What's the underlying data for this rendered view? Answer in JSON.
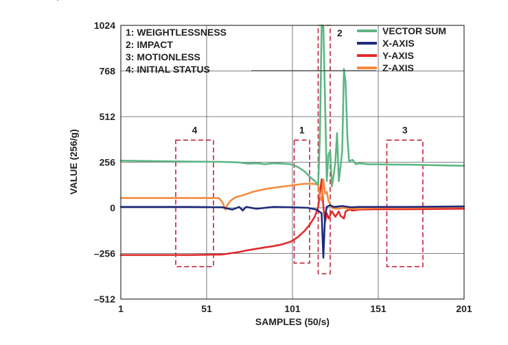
{
  "chart_data": {
    "type": "line",
    "xlabel": "SAMPLES (50/s)",
    "ylabel": "VALUE (256/g)",
    "xlim": [
      1,
      201
    ],
    "ylim": [
      -512,
      1024
    ],
    "xticks": [
      "1",
      "51",
      "101",
      "151",
      "201"
    ],
    "yticks": [
      "1024",
      "768",
      "512",
      "256",
      "0",
      "–256",
      "–512"
    ],
    "grid": true,
    "legend_position": "top-right",
    "annotations": [
      "1: WEIGHTLESSNESS",
      "2: IMPACT",
      "3: MOTIONLESS",
      "4: INITIAL STATUS"
    ],
    "region_labels": [
      {
        "label": "4",
        "x0": 33,
        "x1": 55,
        "y0": -330,
        "y1": 380
      },
      {
        "label": "1",
        "x0": 102,
        "x1": 111,
        "y0": -310,
        "y1": 380
      },
      {
        "label": "2",
        "x0": 116,
        "x1": 123,
        "y0": -370,
        "y1": 1024
      },
      {
        "label": "3",
        "x0": 156,
        "x1": 177,
        "y0": -330,
        "y1": 380
      }
    ],
    "series": [
      {
        "name": "VECTOR SUM",
        "color": "#5cb683",
        "points": [
          [
            1,
            265
          ],
          [
            20,
            262
          ],
          [
            40,
            260
          ],
          [
            60,
            258
          ],
          [
            70,
            255
          ],
          [
            75,
            248
          ],
          [
            80,
            250
          ],
          [
            85,
            245
          ],
          [
            90,
            250
          ],
          [
            95,
            248
          ],
          [
            100,
            245
          ],
          [
            104,
            230
          ],
          [
            108,
            205
          ],
          [
            111,
            175
          ],
          [
            114,
            150
          ],
          [
            116,
            130
          ],
          [
            117,
            400
          ],
          [
            118,
            1024
          ],
          [
            119,
            1024
          ],
          [
            120,
            600
          ],
          [
            121,
            150
          ],
          [
            122,
            300
          ],
          [
            123,
            320
          ],
          [
            124,
            120
          ],
          [
            125,
            180
          ],
          [
            126,
            260
          ],
          [
            127,
            420
          ],
          [
            128,
            150
          ],
          [
            129,
            230
          ],
          [
            130,
            320
          ],
          [
            131,
            780
          ],
          [
            132,
            700
          ],
          [
            133,
            400
          ],
          [
            134,
            260
          ],
          [
            136,
            270
          ],
          [
            138,
            245
          ],
          [
            140,
            250
          ],
          [
            145,
            245
          ],
          [
            150,
            244
          ],
          [
            160,
            243
          ],
          [
            170,
            242
          ],
          [
            180,
            240
          ],
          [
            190,
            238
          ],
          [
            201,
            236
          ]
        ]
      },
      {
        "name": "X-AXIS",
        "color": "#1e2a78",
        "points": [
          [
            1,
            5
          ],
          [
            20,
            5
          ],
          [
            40,
            5
          ],
          [
            60,
            3
          ],
          [
            66,
            -10
          ],
          [
            70,
            5
          ],
          [
            72,
            -15
          ],
          [
            74,
            5
          ],
          [
            80,
            -5
          ],
          [
            90,
            5
          ],
          [
            100,
            3
          ],
          [
            110,
            0
          ],
          [
            115,
            -10
          ],
          [
            118,
            -30
          ],
          [
            119,
            -280
          ],
          [
            120,
            -50
          ],
          [
            121,
            5
          ],
          [
            123,
            15
          ],
          [
            125,
            5
          ],
          [
            130,
            10
          ],
          [
            135,
            3
          ],
          [
            140,
            5
          ],
          [
            150,
            5
          ],
          [
            170,
            5
          ],
          [
            201,
            8
          ]
        ]
      },
      {
        "name": "Y-AXIS",
        "color": "#e02b2b",
        "points": [
          [
            1,
            -265
          ],
          [
            20,
            -265
          ],
          [
            40,
            -265
          ],
          [
            60,
            -262
          ],
          [
            65,
            -255
          ],
          [
            70,
            -248
          ],
          [
            75,
            -238
          ],
          [
            80,
            -230
          ],
          [
            85,
            -222
          ],
          [
            90,
            -215
          ],
          [
            95,
            -205
          ],
          [
            100,
            -190
          ],
          [
            104,
            -165
          ],
          [
            108,
            -130
          ],
          [
            111,
            -95
          ],
          [
            114,
            -50
          ],
          [
            116,
            5
          ],
          [
            117,
            80
          ],
          [
            118,
            160
          ],
          [
            119,
            10
          ],
          [
            120,
            -80
          ],
          [
            121,
            -30
          ],
          [
            122,
            -60
          ],
          [
            123,
            -40
          ],
          [
            124,
            -20
          ],
          [
            126,
            -50
          ],
          [
            128,
            -20
          ],
          [
            129,
            -45
          ],
          [
            131,
            -60
          ],
          [
            132,
            -20
          ],
          [
            134,
            -10
          ],
          [
            136,
            -15
          ],
          [
            140,
            -10
          ],
          [
            150,
            -8
          ],
          [
            170,
            -8
          ],
          [
            201,
            -5
          ]
        ]
      },
      {
        "name": "Z-AXIS",
        "color": "#f58a3c",
        "points": [
          [
            1,
            55
          ],
          [
            20,
            55
          ],
          [
            40,
            55
          ],
          [
            58,
            55
          ],
          [
            60,
            35
          ],
          [
            62,
            -10
          ],
          [
            63,
            15
          ],
          [
            65,
            40
          ],
          [
            68,
            60
          ],
          [
            72,
            70
          ],
          [
            78,
            90
          ],
          [
            85,
            105
          ],
          [
            92,
            115
          ],
          [
            100,
            125
          ],
          [
            108,
            135
          ],
          [
            113,
            135
          ],
          [
            116,
            130
          ],
          [
            117,
            60
          ],
          [
            118,
            40
          ],
          [
            119,
            160
          ],
          [
            120,
            80
          ],
          [
            121,
            90
          ],
          [
            122,
            40
          ],
          [
            124,
            0
          ],
          [
            126,
            -5
          ],
          [
            128,
            -5
          ],
          [
            130,
            0
          ],
          [
            135,
            -5
          ],
          [
            140,
            -5
          ],
          [
            150,
            0
          ],
          [
            170,
            0
          ],
          [
            201,
            5
          ]
        ]
      }
    ]
  }
}
